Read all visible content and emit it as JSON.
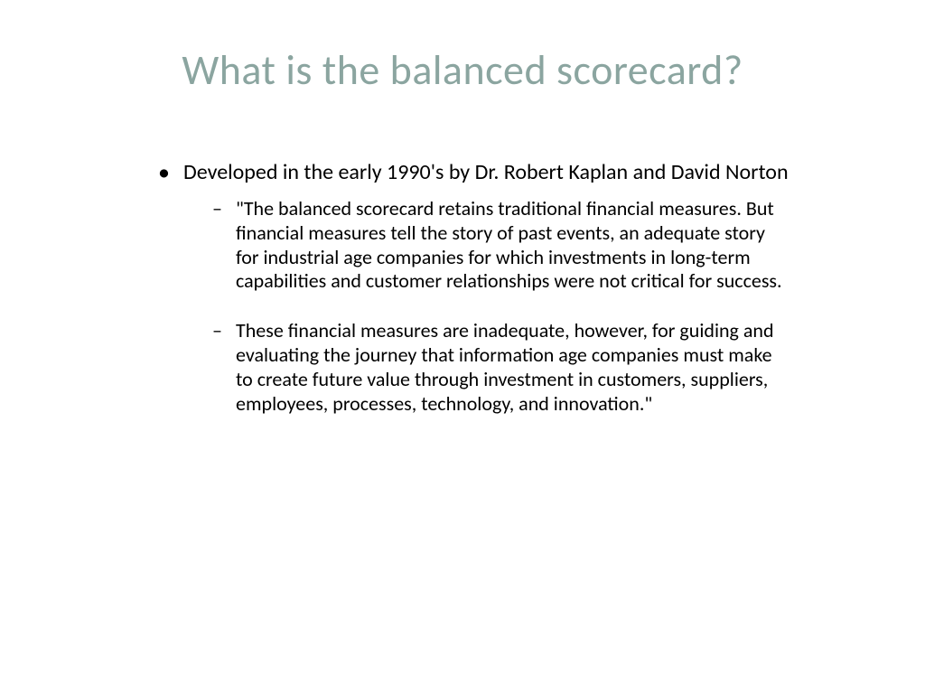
{
  "slide": {
    "title": "What is the balanced scorecard?",
    "title_color": "#8ba5a0",
    "title_fontsize": 46,
    "background_color": "#ffffff",
    "body_color": "#000000",
    "body_fontsize_main": 24,
    "body_fontsize_sub": 22,
    "main_bullet": "Developed in the early 1990's by Dr. Robert Kaplan and David Norton",
    "sub_bullets": [
      "\"The balanced scorecard retains traditional financial measures. But financial measures tell the story of past events, an adequate story for industrial age companies for which investments in long-term capabilities and customer relationships were not critical for success.",
      "These financial measures are inadequate, however, for guiding and evaluating the journey that information age companies must make to create future value through investment in customers, suppliers, employees, processes, technology, and innovation.\""
    ]
  }
}
